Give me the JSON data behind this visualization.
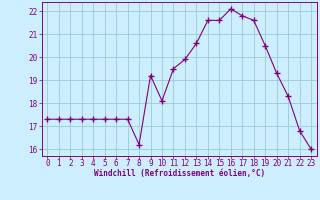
{
  "x": [
    0,
    1,
    2,
    3,
    4,
    5,
    6,
    7,
    8,
    9,
    10,
    11,
    12,
    13,
    14,
    15,
    16,
    17,
    18,
    19,
    20,
    21,
    22,
    23
  ],
  "y": [
    17.3,
    17.3,
    17.3,
    17.3,
    17.3,
    17.3,
    17.3,
    17.3,
    16.2,
    19.2,
    18.1,
    19.5,
    19.9,
    20.6,
    21.6,
    21.6,
    22.1,
    21.8,
    21.6,
    20.5,
    19.3,
    18.3,
    16.8,
    16.0
  ],
  "line_color": "#800080",
  "marker": "+",
  "marker_size": 4,
  "marker_lw": 1.0,
  "bg_color": "#cceeff",
  "grid_color": "#99cccc",
  "xlabel": "Windchill (Refroidissement éolien,°C)",
  "xlabel_color": "#800080",
  "tick_color": "#800080",
  "spine_color": "#800080",
  "xlim": [
    -0.5,
    23.5
  ],
  "ylim": [
    15.7,
    22.4
  ],
  "yticks": [
    16,
    17,
    18,
    19,
    20,
    21,
    22
  ],
  "xticks": [
    0,
    1,
    2,
    3,
    4,
    5,
    6,
    7,
    8,
    9,
    10,
    11,
    12,
    13,
    14,
    15,
    16,
    17,
    18,
    19,
    20,
    21,
    22,
    23
  ],
  "tick_fontsize": 5.5,
  "xlabel_fontsize": 5.5,
  "linewidth": 0.8
}
